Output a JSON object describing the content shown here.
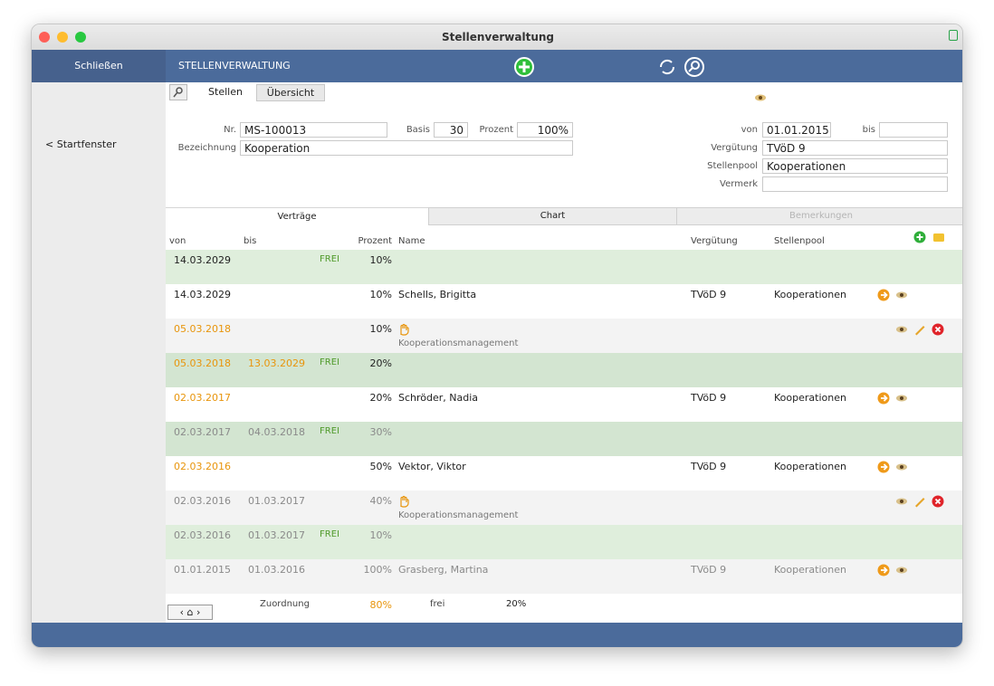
{
  "window": {
    "title": "Stellenverwaltung"
  },
  "toolbar": {
    "close": "Schließen",
    "section": "STELLENVERWALTUNG"
  },
  "sidebar": {
    "back": "< Startfenster"
  },
  "tabs": [
    "Stellen",
    "Übersicht"
  ],
  "form": {
    "nr": {
      "label": "Nr.",
      "value": "MS-100013"
    },
    "basis": {
      "label": "Basis",
      "value": "30"
    },
    "prozent": {
      "label": "Prozent",
      "value": "100%"
    },
    "bezeichnung": {
      "label": "Bezeichnung",
      "value": "Kooperation"
    },
    "von": {
      "label": "von",
      "value": "01.01.2015"
    },
    "bis": {
      "label": "bis"
    },
    "verguetung": {
      "label": "Vergütung",
      "value": "TVöD 9"
    },
    "stellenpool": {
      "label": "Stellenpool",
      "value": "Kooperationen"
    },
    "vermerk": {
      "label": "Vermerk"
    }
  },
  "subtabs": [
    "Verträge",
    "Chart",
    "Bemerkungen"
  ],
  "table": {
    "headers": {
      "von": "von",
      "bis": "bis",
      "prozent": "Prozent",
      "name": "Name",
      "verguetung": "Vergütung",
      "pool": "Stellenpool"
    },
    "rows": [
      {
        "von": "14.03.2029",
        "frei": "FREI",
        "prozent": "10%",
        "bg": "#dfeedc",
        "date_color": "#222",
        "color": "#222"
      },
      {
        "von": "14.03.2029",
        "prozent": "10%",
        "name": "Schells, Brigitta",
        "verguetung": "TVöD 9",
        "pool": "Kooperationen",
        "bg": "#ffffff",
        "date_color": "#222",
        "color": "#222"
      },
      {
        "von": "05.03.2018",
        "prozent": "10%",
        "sub": "Kooperationsmanagement",
        "bg": "#f3f3f3",
        "date_color": "#e8950c",
        "color": "#222"
      },
      {
        "von": "05.03.2018",
        "bis": "13.03.2029",
        "frei": "FREI",
        "prozent": "20%",
        "bg": "#d3e5d1",
        "date_color": "#e8950c",
        "color": "#222"
      },
      {
        "von": "02.03.2017",
        "prozent": "20%",
        "name": "Schröder, Nadia",
        "verguetung": "TVöD 9",
        "pool": "Kooperationen",
        "bg": "#ffffff",
        "date_color": "#e8950c",
        "color": "#222"
      },
      {
        "von": "02.03.2017",
        "bis": "04.03.2018",
        "frei": "FREI",
        "prozent": "30%",
        "bg": "#d3e5d1",
        "date_color": "#8a8a8a",
        "color": "#8a8a8a"
      },
      {
        "von": "02.03.2016",
        "prozent": "50%",
        "name": "Vektor, Viktor",
        "verguetung": "TVöD 9",
        "pool": "Kooperationen",
        "bg": "#ffffff",
        "date_color": "#e8950c",
        "color": "#222"
      },
      {
        "von": "02.03.2016",
        "bis": "01.03.2017",
        "prozent": "40%",
        "sub": "Kooperationsmanagement",
        "bg": "#f3f3f3",
        "date_color": "#8a8a8a",
        "color": "#8a8a8a"
      },
      {
        "von": "02.03.2016",
        "bis": "01.03.2017",
        "frei": "FREI",
        "prozent": "10%",
        "bg": "#dfeedc",
        "date_color": "#8a8a8a",
        "color": "#8a8a8a"
      },
      {
        "von": "01.01.2015",
        "bis": "01.03.2016",
        "prozent": "100%",
        "name": "Grasberg, Martina",
        "verguetung": "TVöD 9",
        "pool": "Kooperationen",
        "bg": "#f3f3f3",
        "date_color": "#8a8a8a",
        "color": "#8a8a8a"
      }
    ]
  },
  "footer": {
    "zuordnung_label": "Zuordnung",
    "zuordnung_value": "80%",
    "frei_label": "frei",
    "frei_value": "20%"
  }
}
